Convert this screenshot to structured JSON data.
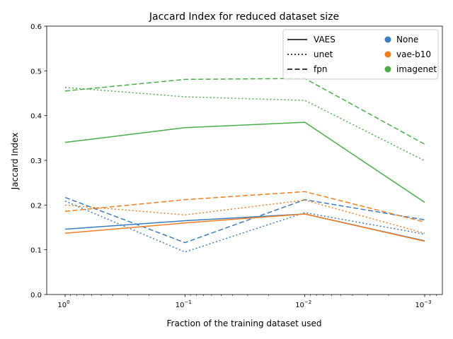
{
  "chart_data": {
    "type": "line",
    "title": "Jaccard Index for reduced dataset size",
    "xlabel": "Fraction of the training dataset used",
    "ylabel": "Jaccard Index",
    "xscale": "log",
    "x_direction": "decreasing",
    "x": [
      1,
      0.1,
      0.01,
      0.001
    ],
    "xticks": [
      {
        "value": 1,
        "base": "10",
        "exp": "0"
      },
      {
        "value": 0.1,
        "base": "10",
        "exp": "−1"
      },
      {
        "value": 0.01,
        "base": "10",
        "exp": "−2"
      },
      {
        "value": 0.001,
        "base": "10",
        "exp": "−3"
      }
    ],
    "ylim": [
      0,
      0.6
    ],
    "yticks": [
      "0.0",
      "0.1",
      "0.2",
      "0.3",
      "0.4",
      "0.5",
      "0.6"
    ],
    "grid": false,
    "legend_position": "top-right",
    "legend": {
      "styles": [
        {
          "label": "VAES",
          "dash": "solid"
        },
        {
          "label": "unet",
          "dash": "dotted"
        },
        {
          "label": "fpn",
          "dash": "dashed"
        }
      ],
      "colors": [
        {
          "label": "None",
          "color": "#3a7dbf"
        },
        {
          "label": "vae-b10",
          "color": "#f27e20"
        },
        {
          "label": "imagenet",
          "color": "#4aad4a"
        }
      ]
    },
    "series": [
      {
        "model": "VAES",
        "init": "None",
        "color": "#3a7dbf",
        "dash": "solid",
        "values": [
          0.146,
          0.165,
          0.18,
          0.12
        ]
      },
      {
        "model": "unet",
        "init": "None",
        "color": "#3a7dbf",
        "dash": "dotted",
        "values": [
          0.209,
          0.095,
          0.183,
          0.135
        ]
      },
      {
        "model": "fpn",
        "init": "None",
        "color": "#3a7dbf",
        "dash": "dashed",
        "values": [
          0.217,
          0.116,
          0.212,
          0.167
        ]
      },
      {
        "model": "VAES",
        "init": "vae-b10",
        "color": "#f27e20",
        "dash": "solid",
        "values": [
          0.137,
          0.16,
          0.18,
          0.119
        ]
      },
      {
        "model": "unet",
        "init": "vae-b10",
        "color": "#f27e20",
        "dash": "dotted",
        "values": [
          0.2,
          0.178,
          0.211,
          0.137
        ]
      },
      {
        "model": "fpn",
        "init": "vae-b10",
        "color": "#f27e20",
        "dash": "dashed",
        "values": [
          0.186,
          0.212,
          0.23,
          0.162
        ]
      },
      {
        "model": "VAES",
        "init": "imagenet",
        "color": "#4aad4a",
        "dash": "solid",
        "values": [
          0.34,
          0.373,
          0.385,
          0.206
        ]
      },
      {
        "model": "unet",
        "init": "imagenet",
        "color": "#4aad4a",
        "dash": "dotted",
        "values": [
          0.463,
          0.442,
          0.434,
          0.299
        ]
      },
      {
        "model": "fpn",
        "init": "imagenet",
        "color": "#4aad4a",
        "dash": "dashed",
        "values": [
          0.455,
          0.481,
          0.483,
          0.336
        ]
      }
    ]
  }
}
